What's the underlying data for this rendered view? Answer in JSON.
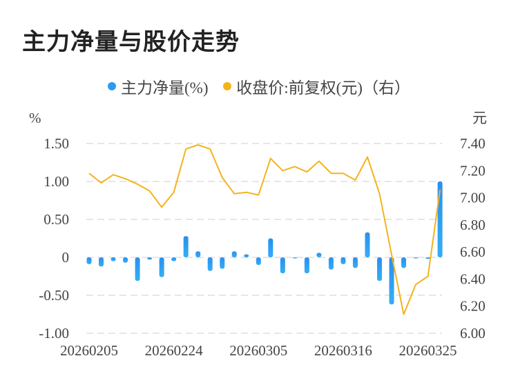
{
  "title": "主力净量与股价走势",
  "chart_data": {
    "type": "bar+line",
    "title": "主力净量与股价走势",
    "legend_position": "top",
    "left_unit": "%",
    "right_unit": "元",
    "left_ylim": [
      -1.0,
      1.5
    ],
    "right_ylim": [
      6.0,
      7.4
    ],
    "left_ticks": [
      "1.50",
      "1.00",
      "0.50",
      "0",
      "-0.50",
      "-1.00"
    ],
    "left_tick_values": [
      1.5,
      1.0,
      0.5,
      0,
      -0.5,
      -1.0
    ],
    "right_ticks": [
      "7.40",
      "7.20",
      "7.00",
      "6.80",
      "6.60",
      "6.40",
      "6.20",
      "6.00"
    ],
    "right_tick_values": [
      7.4,
      7.2,
      7.0,
      6.8,
      6.6,
      6.4,
      6.2,
      6.0
    ],
    "x_tick_labels": [
      {
        "index": 0,
        "label": "20260205"
      },
      {
        "index": 7,
        "label": "20260224"
      },
      {
        "index": 14,
        "label": "20260305"
      },
      {
        "index": 21,
        "label": "20260316"
      },
      {
        "index": 28,
        "label": "20260325"
      }
    ],
    "grid": true,
    "series": [
      {
        "name": "主力净量(%)",
        "type": "bar",
        "axis": "left",
        "color": "#2b9af3",
        "values": [
          -0.09,
          -0.12,
          -0.05,
          -0.07,
          -0.31,
          -0.03,
          -0.26,
          -0.05,
          0.28,
          0.08,
          -0.18,
          -0.15,
          0.08,
          0.04,
          -0.1,
          0.25,
          -0.21,
          -0.01,
          -0.21,
          0.06,
          -0.16,
          -0.09,
          -0.14,
          0.33,
          -0.31,
          -0.62,
          -0.14,
          -0.01,
          -0.02,
          1.0
        ]
      },
      {
        "name": "收盘价:前复权(元)（右）",
        "type": "line",
        "axis": "right",
        "color": "#f5b21b",
        "values": [
          7.18,
          7.11,
          7.17,
          7.14,
          7.1,
          7.05,
          6.93,
          7.04,
          7.36,
          7.39,
          7.36,
          7.15,
          7.03,
          7.04,
          7.02,
          7.29,
          7.2,
          7.23,
          7.19,
          7.27,
          7.18,
          7.18,
          7.13,
          7.3,
          7.03,
          6.58,
          6.14,
          6.36,
          6.42,
          7.06
        ]
      }
    ]
  }
}
